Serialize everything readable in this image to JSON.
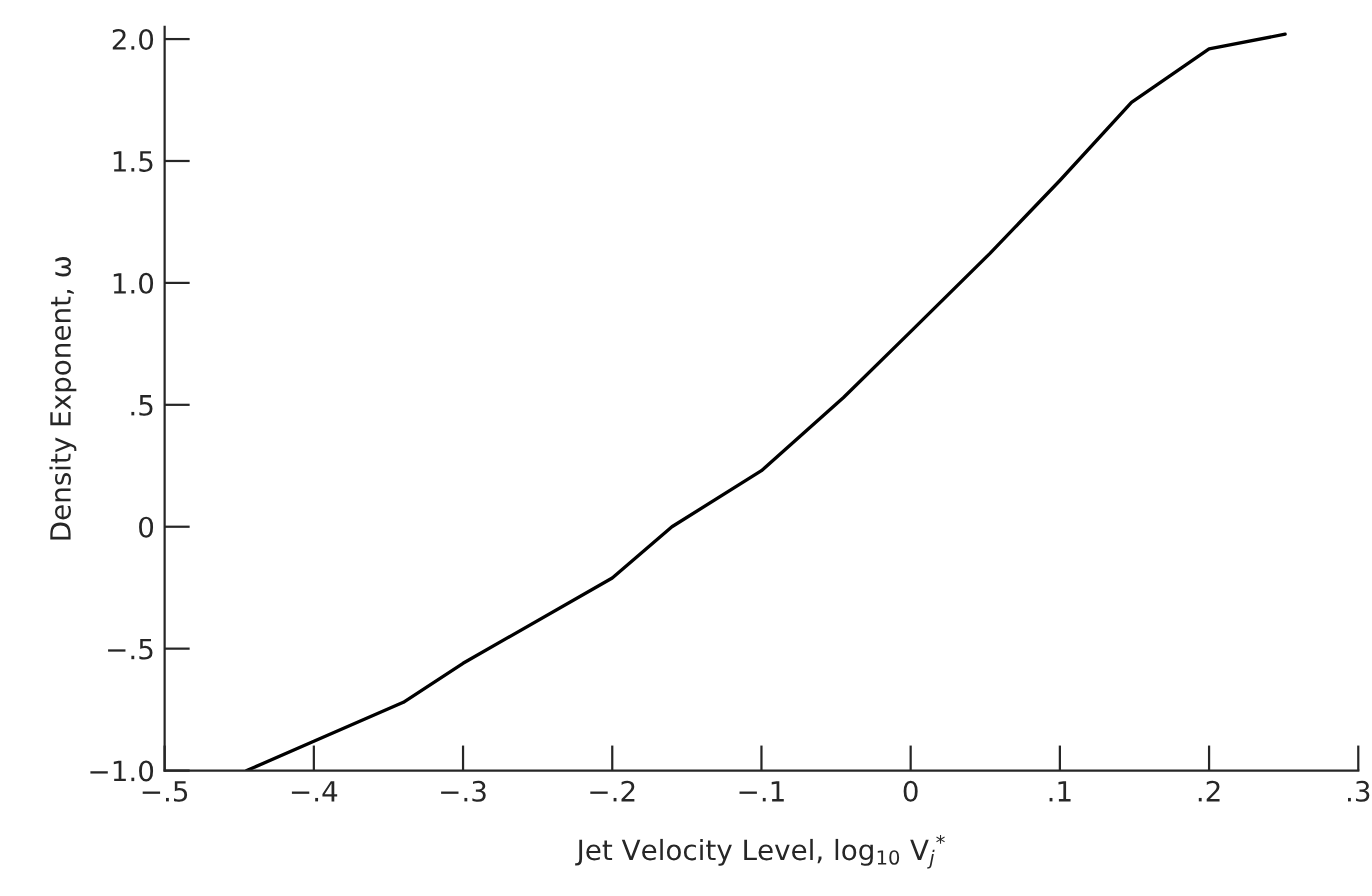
{
  "chart_data": {
    "type": "line",
    "xlabel": "Jet Velocity Level, log$_{10}$ V$_{j}$$^{*}$",
    "ylabel": "Density Exponent, ω",
    "series": [
      {
        "color": "#000000",
        "x": [
          -0.445,
          -0.4,
          -0.34,
          -0.3,
          -0.2,
          -0.16,
          -0.1,
          -0.045,
          0.0,
          0.053,
          0.1,
          0.148,
          0.2,
          0.251
        ],
        "values": [
          -1.0,
          -0.88,
          -0.72,
          -0.56,
          -0.21,
          0.0,
          0.23,
          0.53,
          0.8,
          1.12,
          1.42,
          1.74,
          1.96,
          2.02
        ]
      }
    ],
    "xlim": [
      -0.5,
      0.3
    ],
    "ylim": [
      -1.0,
      2.05
    ],
    "xticks": [
      {
        "value": -0.5,
        "label": "−.5"
      },
      {
        "value": -0.4,
        "label": "−.4"
      },
      {
        "value": -0.3,
        "label": "−.3"
      },
      {
        "value": -0.2,
        "label": "−.2"
      },
      {
        "value": -0.1,
        "label": "−.1"
      },
      0,
      {
        "value": 0.1,
        "label": ".1"
      },
      {
        "value": 0.2,
        "label": ".2"
      },
      {
        "value": 0.3,
        "label": ".3"
      }
    ],
    "yticks": [
      {
        "value": -1.0,
        "label": "−1.0"
      },
      {
        "value": -0.5,
        "label": "−.5"
      },
      0,
      {
        "value": 0.5,
        "label": ".5"
      },
      {
        "value": 1.0,
        "label": "1.0"
      },
      {
        "value": 1.5,
        "label": "1.5"
      },
      {
        "value": 2.0,
        "label": "2.0"
      }
    ],
    "grid": false,
    "legend": false,
    "marker": "none",
    "line_style": "solid"
  }
}
